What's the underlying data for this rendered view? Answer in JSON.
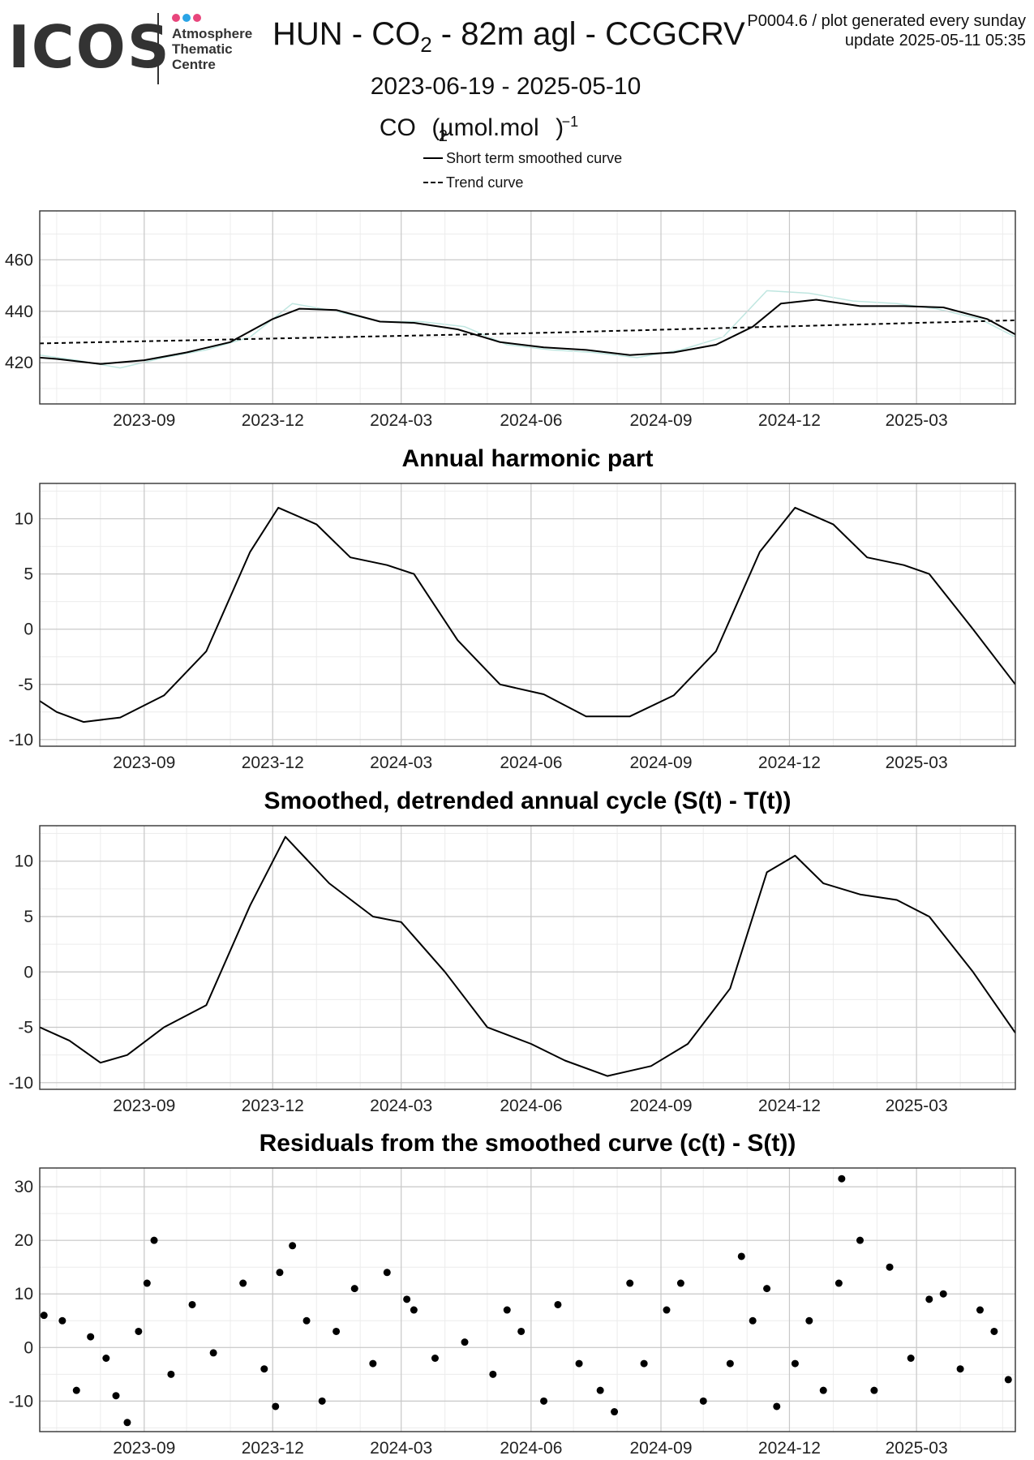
{
  "logo": {
    "text": "ICOS",
    "lines": [
      "Atmosphere",
      "Thematic",
      "Centre"
    ],
    "dot_colors": [
      "#e8467c",
      "#2aa4e6",
      "#e8467c"
    ]
  },
  "header": {
    "title_main": "HUN - CO",
    "title_sub": "2",
    "title_rest": " - 82m agl - CCGCRV",
    "meta_line1": "P0004.6 / plot generated every sunday",
    "meta_line2": "update  2025-05-11 05:35",
    "date_range": "2023-06-19 - 2025-05-10",
    "unit_pre": "CO",
    "unit_sub": "2",
    "unit_mid": " (µmol.mol",
    "unit_sup": "−1",
    "unit_post": ")"
  },
  "legend": {
    "smoothed": "Short term smoothed curve",
    "trend": "Trend curve"
  },
  "colors": {
    "raw_series": "#bfe6e0",
    "line": "#000000",
    "grid_major": "#c8c8c8",
    "grid_minor": "#ececec"
  },
  "chart_data": [
    {
      "type": "line",
      "title": "",
      "ylabel": "CO2 (µmol.mol−1)",
      "x_start": "2023-06-19",
      "x_end": "2025-05-10",
      "x_ticks": [
        "2023-09",
        "2023-12",
        "2024-03",
        "2024-06",
        "2024-09",
        "2024-12",
        "2025-03"
      ],
      "y_ticks": [
        420,
        440,
        460
      ],
      "ylim": [
        404,
        479
      ],
      "grid": true,
      "series": [
        {
          "name": "Short term smoothed curve",
          "style": "solid",
          "x": [
            "2023-06-19",
            "2023-07-01",
            "2023-08-01",
            "2023-09-01",
            "2023-10-01",
            "2023-11-01",
            "2023-12-01",
            "2023-12-20",
            "2024-01-15",
            "2024-02-15",
            "2024-03-10",
            "2024-04-10",
            "2024-05-10",
            "2024-06-10",
            "2024-07-10",
            "2024-08-10",
            "2024-09-10",
            "2024-10-10",
            "2024-11-05",
            "2024-11-25",
            "2024-12-20",
            "2025-01-20",
            "2025-02-20",
            "2025-03-20",
            "2025-04-20",
            "2025-05-10"
          ],
          "values": [
            422,
            421.5,
            419.5,
            421,
            424,
            428,
            437,
            441,
            440.5,
            436,
            435.5,
            433,
            428,
            426,
            425,
            423,
            424,
            427,
            434,
            443,
            444.5,
            442,
            442,
            441.5,
            437,
            431
          ]
        },
        {
          "name": "Trend curve",
          "style": "dashed",
          "x": [
            "2023-06-19",
            "2024-06-01",
            "2025-05-10"
          ],
          "values": [
            427.5,
            431.5,
            436.5
          ]
        },
        {
          "name": "Observations",
          "style": "raw",
          "x": [
            "2023-06-19",
            "2023-07-15",
            "2023-08-15",
            "2023-09-15",
            "2023-10-15",
            "2023-11-15",
            "2023-12-15",
            "2024-01-15",
            "2024-02-15",
            "2024-03-15",
            "2024-04-15",
            "2024-05-15",
            "2024-06-15",
            "2024-07-15",
            "2024-08-15",
            "2024-09-15",
            "2024-10-15",
            "2024-11-15",
            "2024-12-15",
            "2025-01-15",
            "2025-02-15",
            "2025-03-15",
            "2025-04-15",
            "2025-05-10"
          ],
          "values": [
            423,
            421,
            418,
            422,
            425,
            430,
            443,
            440,
            436,
            436,
            434,
            427,
            425,
            424,
            422,
            425,
            430,
            448,
            447,
            444,
            443,
            441,
            437,
            430
          ]
        }
      ]
    },
    {
      "type": "line",
      "title": "Annual harmonic part",
      "x_start": "2023-06-19",
      "x_end": "2025-05-10",
      "x_ticks": [
        "2023-09",
        "2023-12",
        "2024-03",
        "2024-06",
        "2024-09",
        "2024-12",
        "2025-03"
      ],
      "y_ticks": [
        -10,
        -5,
        0,
        5,
        10
      ],
      "ylim": [
        -10.6,
        13.2
      ],
      "grid": true,
      "series": [
        {
          "x": [
            "2023-06-19",
            "2023-07-01",
            "2023-07-20",
            "2023-08-15",
            "2023-09-15",
            "2023-10-15",
            "2023-11-15",
            "2023-12-05",
            "2024-01-01",
            "2024-01-25",
            "2024-02-20",
            "2024-03-10",
            "2024-04-10",
            "2024-05-10",
            "2024-06-10",
            "2024-07-10",
            "2024-08-10",
            "2024-09-10",
            "2024-10-10",
            "2024-11-10",
            "2024-12-05",
            "2025-01-01",
            "2025-01-25",
            "2025-02-20",
            "2025-03-10",
            "2025-04-10",
            "2025-05-10"
          ],
          "values": [
            -6.5,
            -7.5,
            -8.4,
            -8,
            -6,
            -2,
            7,
            11,
            9.5,
            6.5,
            5.8,
            5,
            -1,
            -5,
            -5.9,
            -7.9,
            -7.9,
            -6,
            -2,
            7,
            11,
            9.5,
            6.5,
            5.8,
            5,
            0,
            -5
          ]
        }
      ]
    },
    {
      "type": "line",
      "title": "Smoothed, detrended annual cycle (S(t) - T(t))",
      "x_start": "2023-06-19",
      "x_end": "2025-05-10",
      "x_ticks": [
        "2023-09",
        "2023-12",
        "2024-03",
        "2024-06",
        "2024-09",
        "2024-12",
        "2025-03"
      ],
      "y_ticks": [
        -10,
        -5,
        0,
        5,
        10
      ],
      "ylim": [
        -10.6,
        13.2
      ],
      "grid": true,
      "series": [
        {
          "x": [
            "2023-06-19",
            "2023-07-10",
            "2023-08-01",
            "2023-08-20",
            "2023-09-15",
            "2023-10-15",
            "2023-11-15",
            "2023-12-10",
            "2024-01-10",
            "2024-02-10",
            "2024-03-01",
            "2024-04-01",
            "2024-05-01",
            "2024-06-01",
            "2024-06-25",
            "2024-07-25",
            "2024-08-25",
            "2024-09-20",
            "2024-10-20",
            "2024-11-15",
            "2024-12-05",
            "2024-12-25",
            "2025-01-20",
            "2025-02-15",
            "2025-03-10",
            "2025-04-10",
            "2025-05-10"
          ],
          "values": [
            -5,
            -6.2,
            -8.2,
            -7.5,
            -5,
            -3,
            6,
            12.2,
            8,
            5,
            4.5,
            0,
            -5,
            -6.5,
            -8,
            -9.4,
            -8.5,
            -6.5,
            -1.5,
            9,
            10.5,
            8,
            7,
            6.5,
            5,
            0,
            -5.5
          ]
        }
      ]
    },
    {
      "type": "scatter",
      "title": "Residuals from the smoothed curve (c(t) - S(t))",
      "x_start": "2023-06-19",
      "x_end": "2025-05-10",
      "x_ticks": [
        "2023-09",
        "2023-12",
        "2024-03",
        "2024-06",
        "2024-09",
        "2024-12",
        "2025-03"
      ],
      "y_ticks": [
        -10,
        0,
        10,
        20,
        30
      ],
      "ylim": [
        -15.7,
        33.5
      ],
      "grid": true,
      "series": [
        {
          "x": [
            "2023-06-22",
            "2023-07-05",
            "2023-07-15",
            "2023-07-25",
            "2023-08-05",
            "2023-08-12",
            "2023-08-20",
            "2023-08-28",
            "2023-09-03",
            "2023-09-08",
            "2023-09-20",
            "2023-10-05",
            "2023-10-20",
            "2023-11-10",
            "2023-11-25",
            "2023-12-03",
            "2023-12-06",
            "2023-12-15",
            "2023-12-25",
            "2024-01-05",
            "2024-01-15",
            "2024-01-28",
            "2024-02-10",
            "2024-02-20",
            "2024-03-05",
            "2024-03-10",
            "2024-03-25",
            "2024-04-15",
            "2024-05-05",
            "2024-05-15",
            "2024-05-25",
            "2024-06-10",
            "2024-06-20",
            "2024-07-05",
            "2024-07-20",
            "2024-07-30",
            "2024-08-10",
            "2024-08-20",
            "2024-09-05",
            "2024-09-15",
            "2024-10-01",
            "2024-10-20",
            "2024-10-28",
            "2024-11-05",
            "2024-11-15",
            "2024-11-22",
            "2024-12-05",
            "2024-12-15",
            "2024-12-25",
            "2025-01-05",
            "2025-01-07",
            "2025-01-20",
            "2025-01-30",
            "2025-02-10",
            "2025-02-25",
            "2025-03-10",
            "2025-03-20",
            "2025-04-01",
            "2025-04-15",
            "2025-04-25",
            "2025-05-05"
          ],
          "values": [
            6,
            5,
            -8,
            2,
            -2,
            -9,
            -14,
            3,
            12,
            20,
            -5,
            8,
            -1,
            12,
            -4,
            -11,
            14,
            19,
            5,
            -10,
            3,
            11,
            -3,
            14,
            9,
            7,
            -2,
            1,
            -5,
            7,
            3,
            -10,
            8,
            -3,
            -8,
            -12,
            12,
            -3,
            7,
            12,
            -10,
            -3,
            17,
            5,
            11,
            -11,
            -3,
            5,
            -8,
            12,
            31.5,
            20,
            -8,
            15,
            -2,
            9,
            10,
            -4,
            7,
            3,
            -6
          ]
        }
      ]
    }
  ]
}
